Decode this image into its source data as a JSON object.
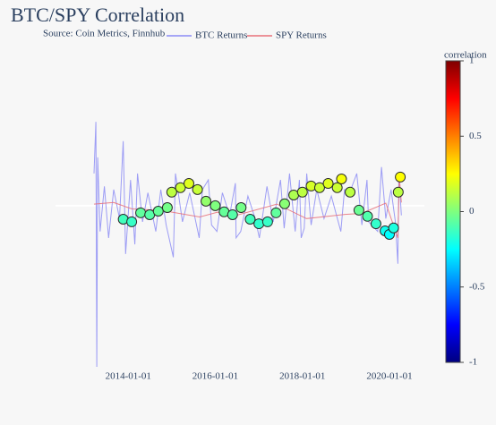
{
  "chart_data": {
    "type": "line-scatter",
    "title": "BTC/SPY Correlation",
    "subtitle": "Source: Coin Metrics, Finnhub",
    "xlim": [
      "2012-05-01",
      "2020-10-20"
    ],
    "xticks": [
      "2014-01-01",
      "2016-01-01",
      "2018-01-01",
      "2020-01-01"
    ],
    "ylim": [
      -0.5,
      0.43
    ],
    "series": [
      {
        "name": "BTC Returns",
        "color": "#8c8cf5",
        "x": [
          "2013-03-20",
          "2013-04-05",
          "2013-04-12",
          "2013-04-20",
          "2013-05-10",
          "2013-06-15",
          "2013-07-20",
          "2013-09-01",
          "2013-10-20",
          "2013-11-20",
          "2013-12-10",
          "2014-01-20",
          "2014-02-25",
          "2014-03-20",
          "2014-05-01",
          "2014-06-15",
          "2014-08-20",
          "2014-10-01",
          "2014-11-15",
          "2015-01-14",
          "2015-02-01",
          "2015-04-01",
          "2015-06-01",
          "2015-08-19",
          "2015-09-15",
          "2015-11-04",
          "2015-12-01",
          "2016-01-15",
          "2016-03-01",
          "2016-05-01",
          "2016-06-18",
          "2016-06-24",
          "2016-08-02",
          "2016-10-01",
          "2016-12-01",
          "2017-01-05",
          "2017-03-10",
          "2017-05-01",
          "2017-07-01",
          "2017-08-01",
          "2017-09-15",
          "2017-11-01",
          "2017-12-07",
          "2017-12-22",
          "2018-01-16",
          "2018-02-06",
          "2018-03-15",
          "2018-05-01",
          "2018-07-01",
          "2018-09-01",
          "2018-11-19",
          "2018-12-20",
          "2019-02-01",
          "2019-04-02",
          "2019-05-15",
          "2019-06-27",
          "2019-07-10",
          "2019-09-25",
          "2019-10-26",
          "2019-12-01",
          "2020-01-15",
          "2020-02-20",
          "2020-03-12",
          "2020-03-20",
          "2020-04-10"
        ],
        "values": [
          0.1,
          0.26,
          -0.5,
          0.15,
          -0.08,
          0.06,
          -0.1,
          0.05,
          -0.04,
          0.2,
          -0.15,
          0.08,
          -0.12,
          0.1,
          -0.05,
          0.04,
          -0.08,
          0.05,
          -0.06,
          -0.16,
          0.1,
          -0.05,
          0.04,
          -0.1,
          0.05,
          0.08,
          -0.06,
          -0.08,
          0.04,
          -0.03,
          0.07,
          -0.1,
          -0.08,
          0.03,
          -0.04,
          -0.1,
          0.06,
          -0.05,
          0.08,
          -0.07,
          0.1,
          -0.08,
          0.08,
          -0.1,
          -0.07,
          0.1,
          -0.06,
          0.05,
          -0.04,
          0.03,
          -0.08,
          0.05,
          0.04,
          0.1,
          -0.06,
          0.08,
          -0.05,
          -0.08,
          0.12,
          -0.04,
          0.05,
          -0.05,
          -0.18,
          0.1,
          -0.03
        ]
      },
      {
        "name": "SPY Returns",
        "color": "#e8707a",
        "x": [
          "2013-03-20",
          "2013-09-01",
          "2014-02-01",
          "2014-10-15",
          "2015-08-24",
          "2016-01-20",
          "2016-06-24",
          "2017-06-01",
          "2018-02-05",
          "2018-10-10",
          "2018-12-24",
          "2019-05-13",
          "2019-12-01",
          "2020-03-12",
          "2020-03-24",
          "2020-04-10"
        ],
        "values": [
          0.005,
          0.01,
          -0.01,
          -0.015,
          -0.035,
          -0.02,
          -0.03,
          0.005,
          -0.04,
          -0.03,
          -0.027,
          -0.024,
          0.008,
          -0.1,
          0.09,
          0.01
        ]
      }
    ],
    "correlation_points": {
      "x": [
        "2013-11-20",
        "2014-01-30",
        "2014-04-15",
        "2014-06-30",
        "2014-09-10",
        "2014-11-25",
        "2015-01-01",
        "2015-03-15",
        "2015-05-25",
        "2015-08-05",
        "2015-10-15",
        "2016-01-01",
        "2016-03-15",
        "2016-05-25",
        "2016-08-05",
        "2016-10-20",
        "2017-01-01",
        "2017-03-15",
        "2017-05-25",
        "2017-08-05",
        "2017-10-20",
        "2018-01-01",
        "2018-03-15",
        "2018-05-25",
        "2018-08-05",
        "2018-10-20",
        "2018-11-25",
        "2019-02-05",
        "2019-04-20",
        "2019-07-01",
        "2019-09-10",
        "2019-11-25",
        "2020-01-01",
        "2020-02-05",
        "2020-03-15",
        "2020-04-01"
      ],
      "values": [
        -0.042,
        -0.05,
        -0.022,
        -0.028,
        -0.017,
        -0.006,
        0.042,
        0.056,
        0.069,
        0.05,
        0.014,
        0,
        -0.019,
        -0.028,
        -0.006,
        -0.042,
        -0.056,
        -0.05,
        -0.022,
        0.006,
        0.033,
        0.042,
        0.061,
        0.056,
        0.069,
        0.056,
        0.083,
        0.042,
        -0.014,
        -0.033,
        -0.056,
        -0.078,
        -0.089,
        -0.069,
        0.042,
        0.089
      ],
      "correlation": [
        -0.12,
        -0.14,
        -0.06,
        -0.08,
        -0.05,
        -0.02,
        0.12,
        0.15,
        0.19,
        0.14,
        0.04,
        0,
        -0.05,
        -0.08,
        -0.02,
        -0.12,
        -0.15,
        -0.14,
        -0.06,
        0.02,
        0.09,
        0.12,
        0.17,
        0.15,
        0.19,
        0.15,
        0.23,
        0.12,
        -0.04,
        -0.09,
        -0.15,
        -0.22,
        -0.25,
        -0.19,
        0.12,
        0.25
      ]
    },
    "colorbar_title": "correlation",
    "clim": [
      -1,
      1
    ],
    "cticks": [
      -1,
      -0.5,
      0,
      0.5,
      1
    ],
    "colorscale": [
      "#00007f",
      "#0000ff",
      "#007fff",
      "#00ffff",
      "#7fff7f",
      "#ffff00",
      "#ff7f00",
      "#ff0000",
      "#7f0000"
    ]
  }
}
